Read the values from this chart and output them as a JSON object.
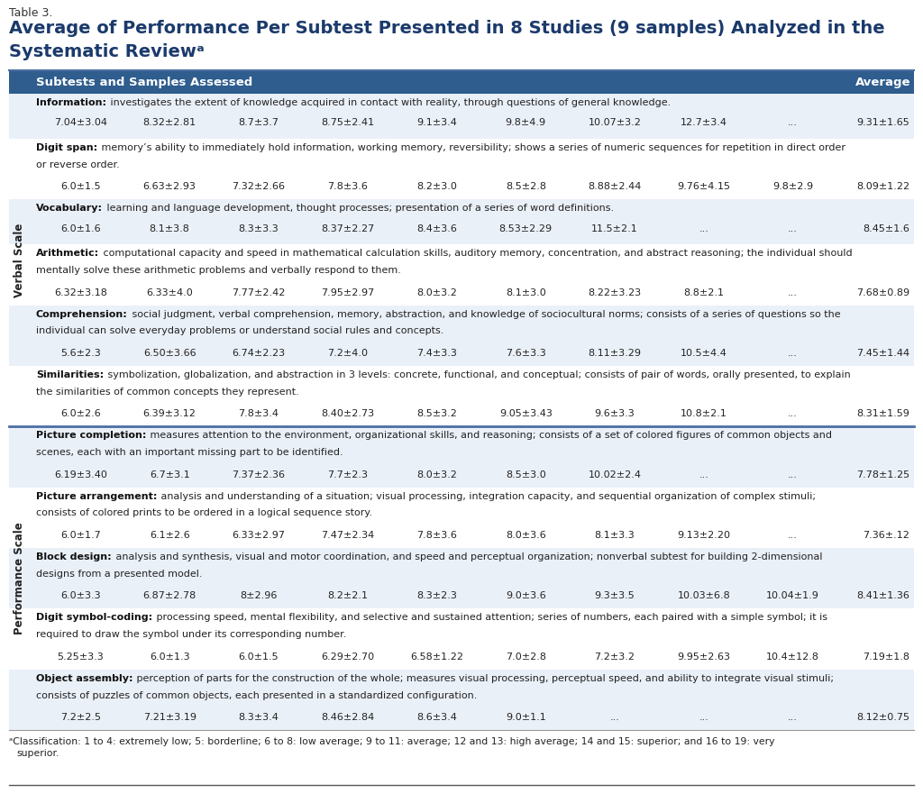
{
  "table_label": "Table 3.",
  "title_line1": "Average of Performance Per Subtest Presented in 8 Studies (9 samples) Analyzed in the",
  "title_line2": "Systematic Reviewᵃ",
  "header_col1": "Subtests and Samples Assessed",
  "header_col2": "Average",
  "header_bg": "#2E5D8E",
  "header_text_color": "#FFFFFF",
  "verbal_scale_label": "Verbal Scale",
  "performance_scale_label": "Performance Scale",
  "footnote_super": "ᵃ",
  "footnote_text": "Classification: 1 to 4: extremely low; 5: borderline; 6 to 8: low average; 9 to 11: average; 12 and 13: high average; 14 and 15: superior; and 16 to 19: very",
  "footnote_text2": "superior.",
  "rows": [
    {
      "name": "Information:",
      "desc_line1": " investigates the extent of knowledge acquired in contact with reality, through questions of general knowledge.",
      "desc_line2": "",
      "values": [
        "7.04±3.04",
        "8.32±2.81",
        "8.7±3.7",
        "8.75±2.41",
        "9.1±3.4",
        "9.8±4.9",
        "10.07±3.2",
        "12.7±3.4",
        "...",
        "9.31±1.65"
      ],
      "scale": "verbal",
      "bg": "#EAF0F8",
      "n_desc_lines": 1
    },
    {
      "name": "Digit span:",
      "desc_line1": " memory’s ability to immediately hold information, working memory, reversibility; shows a series of numeric sequences for repetition in direct order",
      "desc_line2": "or reverse order.",
      "values": [
        "6.0±1.5",
        "6.63±2.93",
        "7.32±2.66",
        "7.8±3.6",
        "8.2±3.0",
        "8.5±2.8",
        "8.88±2.44",
        "9.76±4.15",
        "9.8±2.9",
        "8.09±1.22"
      ],
      "scale": "verbal",
      "bg": "#FFFFFF",
      "n_desc_lines": 2
    },
    {
      "name": "Vocabulary:",
      "desc_line1": " learning and language development, thought processes; presentation of a series of word definitions.",
      "desc_line2": "",
      "values": [
        "6.0±1.6",
        "8.1±3.8",
        "8.3±3.3",
        "8.37±2.27",
        "8.4±3.6",
        "8.53±2.29",
        "11.5±2.1",
        "...",
        "...",
        "8.45±1.6"
      ],
      "scale": "verbal",
      "bg": "#EAF0F8",
      "n_desc_lines": 1
    },
    {
      "name": "Arithmetic:",
      "desc_line1": " computational capacity and speed in mathematical calculation skills, auditory memory, concentration, and abstract reasoning; the individual should",
      "desc_line2": "mentally solve these arithmetic problems and verbally respond to them.",
      "values": [
        "6.32±3.18",
        "6.33±4.0",
        "7.77±2.42",
        "7.95±2.97",
        "8.0±3.2",
        "8.1±3.0",
        "8.22±3.23",
        "8.8±2.1",
        "...",
        "7.68±0.89"
      ],
      "scale": "verbal",
      "bg": "#FFFFFF",
      "n_desc_lines": 2
    },
    {
      "name": "Comprehension:",
      "desc_line1": " social judgment, verbal comprehension, memory, abstraction, and knowledge of sociocultural norms; consists of a series of questions so the",
      "desc_line2": "individual can solve everyday problems or understand social rules and concepts.",
      "values": [
        "5.6±2.3",
        "6.50±3.66",
        "6.74±2.23",
        "7.2±4.0",
        "7.4±3.3",
        "7.6±3.3",
        "8.11±3.29",
        "10.5±4.4",
        "...",
        "7.45±1.44"
      ],
      "scale": "verbal",
      "bg": "#EAF0F8",
      "n_desc_lines": 2
    },
    {
      "name": "Similarities:",
      "desc_line1": " symbolization, globalization, and abstraction in 3 levels: concrete, functional, and conceptual; consists of pair of words, orally presented, to explain",
      "desc_line2": "the similarities of common concepts they represent.",
      "values": [
        "6.0±2.6",
        "6.39±3.12",
        "7.8±3.4",
        "8.40±2.73",
        "8.5±3.2",
        "9.05±3.43",
        "9.6±3.3",
        "10.8±2.1",
        "...",
        "8.31±1.59"
      ],
      "scale": "verbal",
      "bg": "#FFFFFF",
      "n_desc_lines": 2
    },
    {
      "name": "Picture completion:",
      "desc_line1": " measures attention to the environment, organizational skills, and reasoning; consists of a set of colored figures of common objects and",
      "desc_line2": "scenes, each with an important missing part to be identified.",
      "values": [
        "6.19±3.40",
        "6.7±3.1",
        "7.37±2.36",
        "7.7±2.3",
        "8.0±3.2",
        "8.5±3.0",
        "10.02±2.4",
        "...",
        "...",
        "7.78±1.25"
      ],
      "scale": "performance",
      "bg": "#EAF0F8",
      "n_desc_lines": 2
    },
    {
      "name": "Picture arrangement:",
      "desc_line1": " analysis and understanding of a situation; visual processing, integration capacity, and sequential organization of complex stimuli;",
      "desc_line2": "consists of colored prints to be ordered in a logical sequence story.",
      "values": [
        "6.0±1.7",
        "6.1±2.6",
        "6.33±2.97",
        "7.47±2.34",
        "7.8±3.6",
        "8.0±3.6",
        "8.1±3.3",
        "9.13±2.20",
        "...",
        "7.36±.12"
      ],
      "scale": "performance",
      "bg": "#FFFFFF",
      "n_desc_lines": 2
    },
    {
      "name": "Block design:",
      "desc_line1": " analysis and synthesis, visual and motor coordination, and speed and perceptual organization; nonverbal subtest for building 2-dimensional",
      "desc_line2": "designs from a presented model.",
      "values": [
        "6.0±3.3",
        "6.87±2.78",
        "8±2.96",
        "8.2±2.1",
        "8.3±2.3",
        "9.0±3.6",
        "9.3±3.5",
        "10.03±6.8",
        "10.04±1.9",
        "8.41±1.36"
      ],
      "scale": "performance",
      "bg": "#EAF0F8",
      "n_desc_lines": 2
    },
    {
      "name": "Digit symbol-coding:",
      "desc_line1": " processing speed, mental flexibility, and selective and sustained attention; series of numbers, each paired with a simple symbol; it is",
      "desc_line2": "required to draw the symbol under its corresponding number.",
      "values": [
        "5.25±3.3",
        "6.0±1.3",
        "6.0±1.5",
        "6.29±2.70",
        "6.58±1.22",
        "7.0±2.8",
        "7.2±3.2",
        "9.95±2.63",
        "10.4±12.8",
        "7.19±1.8"
      ],
      "scale": "performance",
      "bg": "#FFFFFF",
      "n_desc_lines": 2
    },
    {
      "name": "Object assembly:",
      "desc_line1": " perception of parts for the construction of the whole; measures visual processing, perceptual speed, and ability to integrate visual stimuli;",
      "desc_line2": "consists of puzzles of common objects, each presented in a standardized configuration.",
      "values": [
        "7.2±2.5",
        "7.21±3.19",
        "8.3±3.4",
        "8.46±2.84",
        "8.6±3.4",
        "9.0±1.1",
        "...",
        "...",
        "...",
        "8.12±0.75"
      ],
      "scale": "performance",
      "bg": "#EAF0F8",
      "n_desc_lines": 2
    }
  ]
}
